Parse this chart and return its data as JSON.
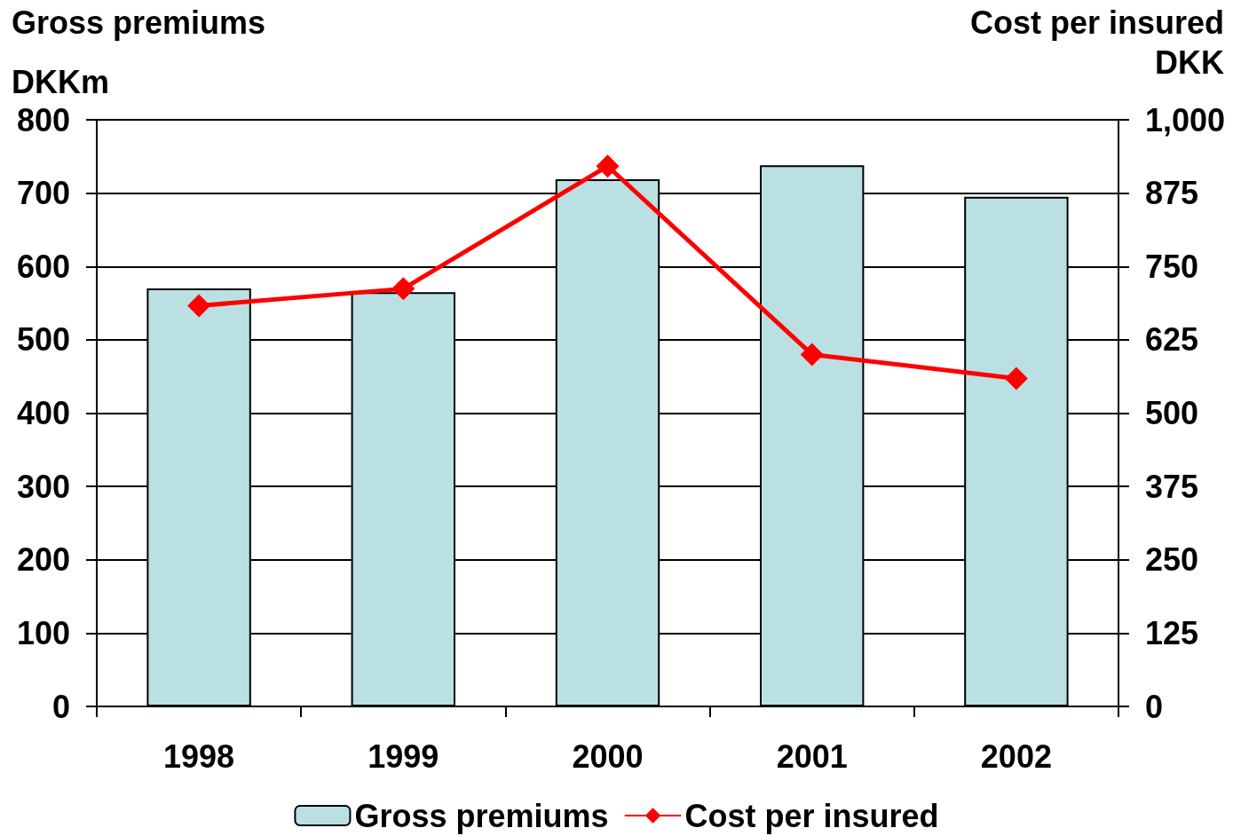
{
  "chart_data": {
    "type": "bar",
    "ylabel": "Gross premiums\nDKKm",
    "y2label": "Cost per insured\nDKK",
    "categories": [
      "1998",
      "1999",
      "2000",
      "2001",
      "2002"
    ],
    "series": [
      {
        "name": "Gross premiums",
        "color": "#bbe0e3",
        "values": [
          570,
          565,
          719,
          738,
          695
        ]
      },
      {
        "name": "Cost per insured",
        "type": "line",
        "axis": "y2",
        "color": "#ff0000",
        "values": [
          683,
          712,
          921,
          600,
          559
        ]
      }
    ],
    "ylim": [
      0,
      800
    ],
    "yticks": [
      0,
      100,
      200,
      300,
      400,
      500,
      600,
      700,
      800
    ],
    "y2lim": [
      0,
      1000
    ],
    "y2ticks": [
      0,
      125,
      250,
      375,
      500,
      625,
      750,
      875,
      {
        "value": 1000,
        "label": "1,000"
      }
    ],
    "grid": "y",
    "legend": "bottom",
    "marker": "diamond"
  }
}
